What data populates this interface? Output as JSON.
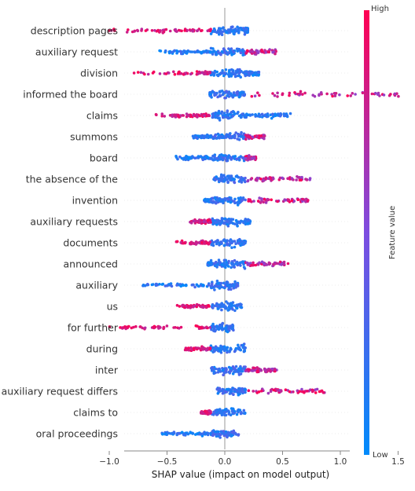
{
  "chart_data": {
    "type": "scatter",
    "subtype": "beeswarm",
    "xlabel": "SHAP value (impact on model output)",
    "xticks": [
      -1.0,
      -0.5,
      0.0,
      0.5,
      1.0,
      1.5
    ],
    "xtick_labels": [
      "−1.0",
      "−0.5",
      "0.0",
      "0.5",
      "1.0",
      "1.5"
    ],
    "xlim": [
      -1.15,
      1.62
    ],
    "colorbar": {
      "title": "Feature value",
      "high": "High",
      "low": "Low"
    },
    "colors": {
      "low": "#1e88e5",
      "high": "#ff0d57",
      "axis": "#999999",
      "zero_line": "#999999",
      "grid": "#eeeeee"
    },
    "features": [
      {
        "name": "description pages",
        "min": -1.03,
        "max": 0.2,
        "negHigh": true
      },
      {
        "name": "auxiliary request",
        "min": -0.57,
        "max": 0.45,
        "negHigh": false
      },
      {
        "name": "division",
        "min": -0.8,
        "max": 0.3,
        "negHigh": true
      },
      {
        "name": "informed the board",
        "min": -0.13,
        "max": 1.52,
        "negHigh": false
      },
      {
        "name": "claims",
        "min": -0.6,
        "max": 0.58,
        "negHigh": true
      },
      {
        "name": "summons",
        "min": -0.28,
        "max": 0.35,
        "negHigh": false
      },
      {
        "name": "board",
        "min": -0.43,
        "max": 0.27,
        "negHigh": false
      },
      {
        "name": "the absence of the",
        "min": -0.1,
        "max": 0.75,
        "negHigh": false
      },
      {
        "name": "invention",
        "min": -0.18,
        "max": 0.72,
        "negHigh": false
      },
      {
        "name": "auxiliary requests",
        "min": -0.3,
        "max": 0.22,
        "negHigh": true
      },
      {
        "name": "documents",
        "min": -0.42,
        "max": 0.18,
        "negHigh": true
      },
      {
        "name": "announced",
        "min": -0.15,
        "max": 0.55,
        "negHigh": false
      },
      {
        "name": "auxiliary",
        "min": -0.72,
        "max": 0.12,
        "negHigh": false
      },
      {
        "name": "us",
        "min": -0.42,
        "max": 0.15,
        "negHigh": true
      },
      {
        "name": "for further",
        "min": -1.05,
        "max": 0.08,
        "negHigh": true
      },
      {
        "name": "during",
        "min": -0.35,
        "max": 0.18,
        "negHigh": true
      },
      {
        "name": "inter",
        "min": -0.12,
        "max": 0.45,
        "negHigh": false
      },
      {
        "name": "auxiliary request differs",
        "min": -0.08,
        "max": 0.87,
        "negHigh": false
      },
      {
        "name": "claims to",
        "min": -0.22,
        "max": 0.18,
        "negHigh": true
      },
      {
        "name": "oral proceedings",
        "min": -0.55,
        "max": 0.12,
        "negHigh": false
      }
    ]
  }
}
